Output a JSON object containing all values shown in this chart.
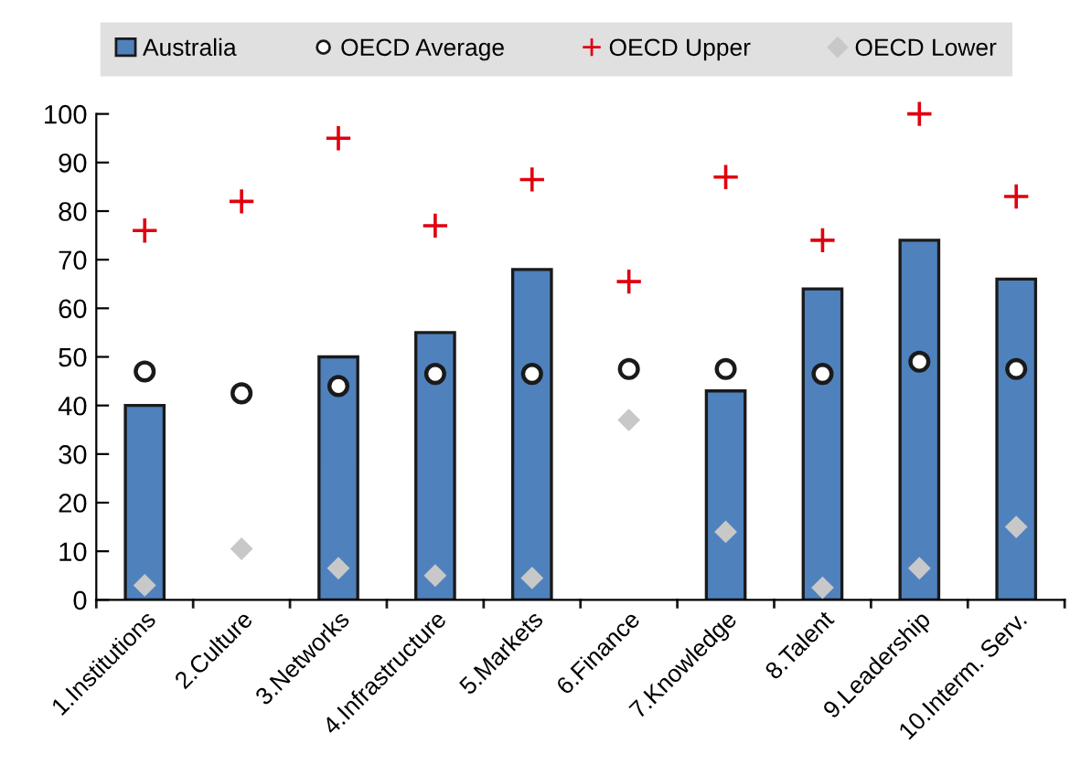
{
  "chart_data": {
    "type": "bar",
    "categories": [
      "1.Institutions",
      "2.Culture",
      "3.Networks",
      "4.Infrastructure",
      "5.Markets",
      "6.Finance",
      "7.Knowledge",
      "8.Talent",
      "9.Leadership",
      "10.Interm. Serv."
    ],
    "series": [
      {
        "name": "Australia",
        "color": "#4f81bd",
        "values": [
          40,
          null,
          50,
          55,
          68,
          null,
          43,
          64,
          74,
          66
        ]
      },
      {
        "name": "OECD Average",
        "type": "scatter",
        "marker": "circle",
        "color": "#ffffff",
        "values": [
          47,
          42.5,
          44,
          46.5,
          46.5,
          47.5,
          47.5,
          46.5,
          49,
          47.5
        ]
      },
      {
        "name": "OECD Upper",
        "type": "scatter",
        "marker": "cross",
        "color": "#e0000f",
        "values": [
          76,
          82,
          95,
          77,
          86.5,
          65.5,
          87,
          74,
          100,
          83
        ]
      },
      {
        "name": "OECD Lower",
        "type": "scatter",
        "marker": "diamond",
        "color": "#c8c8c8",
        "values": [
          3,
          10.5,
          6.5,
          5,
          4.5,
          37,
          14,
          2.5,
          6.5,
          15
        ]
      }
    ],
    "ylim": [
      0,
      100
    ],
    "yticks": [
      0,
      10,
      20,
      30,
      40,
      50,
      60,
      70,
      80,
      90,
      100
    ],
    "grid": false,
    "legend": "top"
  }
}
